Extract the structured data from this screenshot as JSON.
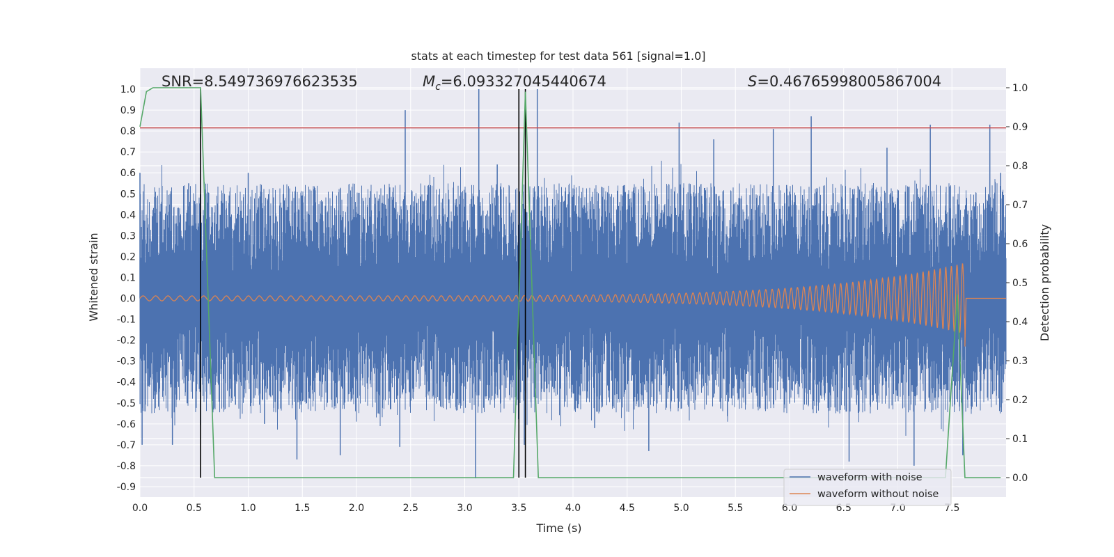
{
  "chart_data": {
    "type": "line",
    "title": "stats at each timestep for test data 561 [signal=1.0]",
    "xlabel": "Time (s)",
    "ylabel": "Whitened strain",
    "ylabel_right": "Detection probability",
    "xlim": [
      0.0,
      8.0
    ],
    "ylim": [
      -0.95,
      1.1
    ],
    "ylim_right": [
      -0.05,
      1.05
    ],
    "x_ticks": [
      "0.0",
      "0.5",
      "1.0",
      "1.5",
      "2.0",
      "2.5",
      "3.0",
      "3.5",
      "4.0",
      "4.5",
      "5.0",
      "5.5",
      "6.0",
      "6.5",
      "7.0",
      "7.5"
    ],
    "y_ticks": [
      "1.0",
      "0.9",
      "0.8",
      "0.7",
      "0.6",
      "0.5",
      "0.4",
      "0.3",
      "0.2",
      "0.1",
      "0.0",
      "-0.1",
      "-0.2",
      "-0.3",
      "-0.4",
      "-0.5",
      "-0.6",
      "-0.7",
      "-0.8",
      "-0.9"
    ],
    "y_ticks_right": [
      "1.0",
      "0.9",
      "0.8",
      "0.7",
      "0.6",
      "0.5",
      "0.4",
      "0.3",
      "0.2",
      "0.1",
      "0.0"
    ],
    "grid": true,
    "stats": {
      "snr": "SNR=8.549736976623535",
      "mc_symbol": "M",
      "mc_sub": "c",
      "mc_value": "=6.093327045440674",
      "s_symbol": "S",
      "s_value": "=0.46765998005867004"
    },
    "threshold": {
      "y": 0.815,
      "color": "#c44e52"
    },
    "vlines": [
      0.56,
      3.5,
      3.56
    ],
    "series": [
      {
        "name": "waveform with noise",
        "color": "#4c72b0",
        "band": {
          "x0": 0.0,
          "x1": 8.0,
          "min": -0.55,
          "max": 0.55
        },
        "spikes": [
          [
            0.0,
            0.6
          ],
          [
            0.02,
            -0.7
          ],
          [
            0.45,
            0.55
          ],
          [
            0.3,
            -0.7
          ],
          [
            1.0,
            0.6
          ],
          [
            1.15,
            -0.6
          ],
          [
            1.45,
            -0.77
          ],
          [
            1.85,
            -0.75
          ],
          [
            2.2,
            -0.55
          ],
          [
            2.45,
            0.9
          ],
          [
            2.4,
            -0.71
          ],
          [
            3.13,
            1.0
          ],
          [
            3.1,
            -0.86
          ],
          [
            3.3,
            0.64
          ],
          [
            3.55,
            -0.7
          ],
          [
            3.67,
            1.0
          ],
          [
            4.2,
            -0.62
          ],
          [
            4.7,
            -0.73
          ],
          [
            4.98,
            0.84
          ],
          [
            5.3,
            0.76
          ],
          [
            5.85,
            0.81
          ],
          [
            6.2,
            0.87
          ],
          [
            6.55,
            -0.78
          ],
          [
            6.9,
            0.72
          ],
          [
            7.15,
            -0.8
          ],
          [
            7.3,
            0.83
          ],
          [
            7.6,
            -0.75
          ],
          [
            7.85,
            0.83
          ],
          [
            7.95,
            0.6
          ]
        ]
      },
      {
        "name": "waveform without noise",
        "color": "#dd8452",
        "chirp": {
          "t_merge": 7.62,
          "amp_start": 0.012,
          "amp_end": 0.17,
          "post_merge": 0.0
        }
      },
      {
        "name": "detection probability",
        "color": "#55a868",
        "axis": "right",
        "x": [
          0.0,
          0.06,
          0.12,
          0.56,
          0.69,
          1.4,
          3.45,
          3.56,
          3.68,
          7.44,
          7.55,
          7.62,
          7.95
        ],
        "y": [
          0.9,
          0.99,
          1.0,
          1.0,
          0.0,
          0.0,
          0.0,
          0.99,
          0.0,
          0.0,
          0.47,
          0.0,
          0.0
        ]
      }
    ],
    "legend": {
      "placement": "lower-right",
      "entries": [
        "waveform with noise",
        "waveform without noise"
      ]
    }
  }
}
